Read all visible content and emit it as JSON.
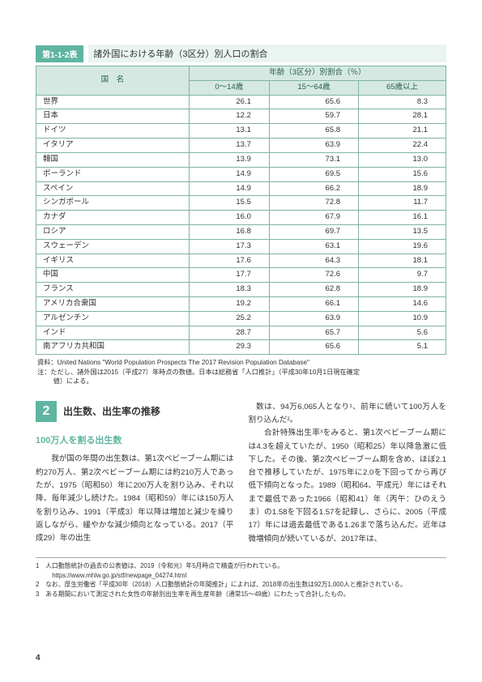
{
  "table_header": {
    "badge": "第1-1-2表",
    "caption": "諸外国における年齢（3区分）別人口の割合"
  },
  "table": {
    "country_col_label": "国　名",
    "spanning_label": "年齢（3区分）別割合（％）",
    "subcols": [
      "0～14歳",
      "15～64歳",
      "65歳以上"
    ],
    "rows": [
      {
        "name": "世界",
        "v": [
          "26.1",
          "65.6",
          "8.3"
        ]
      },
      {
        "name": "日本",
        "v": [
          "12.2",
          "59.7",
          "28.1"
        ]
      },
      {
        "name": "ドイツ",
        "v": [
          "13.1",
          "65.8",
          "21.1"
        ]
      },
      {
        "name": "イタリア",
        "v": [
          "13.7",
          "63.9",
          "22.4"
        ]
      },
      {
        "name": "韓国",
        "v": [
          "13.9",
          "73.1",
          "13.0"
        ]
      },
      {
        "name": "ポーランド",
        "v": [
          "14.9",
          "69.5",
          "15.6"
        ]
      },
      {
        "name": "スペイン",
        "v": [
          "14.9",
          "66.2",
          "18.9"
        ]
      },
      {
        "name": "シンガポール",
        "v": [
          "15.5",
          "72.8",
          "11.7"
        ]
      },
      {
        "name": "カナダ",
        "v": [
          "16.0",
          "67.9",
          "16.1"
        ]
      },
      {
        "name": "ロシア",
        "v": [
          "16.8",
          "69.7",
          "13.5"
        ]
      },
      {
        "name": "スウェーデン",
        "v": [
          "17.3",
          "63.1",
          "19.6"
        ]
      },
      {
        "name": "イギリス",
        "v": [
          "17.6",
          "64.3",
          "18.1"
        ]
      },
      {
        "name": "中国",
        "v": [
          "17.7",
          "72.6",
          "9.7"
        ]
      },
      {
        "name": "フランス",
        "v": [
          "18.3",
          "62.8",
          "18.9"
        ]
      },
      {
        "name": "アメリカ合衆国",
        "v": [
          "19.2",
          "66.1",
          "14.6"
        ]
      },
      {
        "name": "アルゼンチン",
        "v": [
          "25.2",
          "63.9",
          "10.9"
        ]
      },
      {
        "name": "インド",
        "v": [
          "28.7",
          "65.7",
          "5.6"
        ]
      },
      {
        "name": "南アフリカ共和国",
        "v": [
          "29.3",
          "65.6",
          "5.1"
        ]
      }
    ]
  },
  "source": {
    "l1": "資料：United Nations \"World Population Prospects The 2017 Revision Population Database\"",
    "l2a": "注：ただし、諸外国は2015（平成27）年時点の数値。日本は総務省「人口推計」（平成30年10月1日現在確定",
    "l2b": "値）による。"
  },
  "section": {
    "num": "2",
    "title": "出生数、出生率の推移",
    "sub": "100万人を割る出生数"
  },
  "body": {
    "left": "　我が国の年間の出生数は、第1次ベビーブーム期には約270万人、第2次ベビーブーム期には約210万人であったが、1975（昭和50）年に200万人を割り込み、それ以降、毎年減少し続けた。1984（昭和59）年には150万人を割り込み、1991（平成3）年以降は増加と減少を繰り返しながら、緩やかな減少傾向となっている。2017（平成29）年の出生",
    "right1": "数は、94万6,065人となり¹、前年に続いて100万人を割り込んだ²。",
    "right2": "　合計特殊出生率³をみると、第1次ベビーブーム期には4.3を超えていたが、1950（昭和25）年以降急激に低下した。その後、第2次ベビーブーム期を含め、ほぼ2.1台で推移していたが、1975年に2.0を下回ってから再び低下傾向となった。1989（昭和64、平成元）年にはそれまで最低であった1966（昭和41）年（丙午：ひのえうま）の1.58を下回る1.57を記録し、さらに、2005（平成17）年には過去最低である1.26まで落ち込んだ。近年は微増傾向が続いているが、2017年は、"
  },
  "footnotes": {
    "f1": "1　人口動態統計の過去の公表値は、2019（令和元）年5月時点で精査が行われている。",
    "f1b": "https://www.mhlw.go.jp/stf/newpage_04274.html",
    "f2": "2　なお、厚生労働省「平成30年（2018）人口動態統計の年間推計」によれば、2018年の出生数は92万1,000人と推計されている。",
    "f3": "3　ある期間において測定された女性の年齢別出生率を再生産年齢（通常15～49歳）にわたって合計したもの。"
  },
  "page_number": "4"
}
